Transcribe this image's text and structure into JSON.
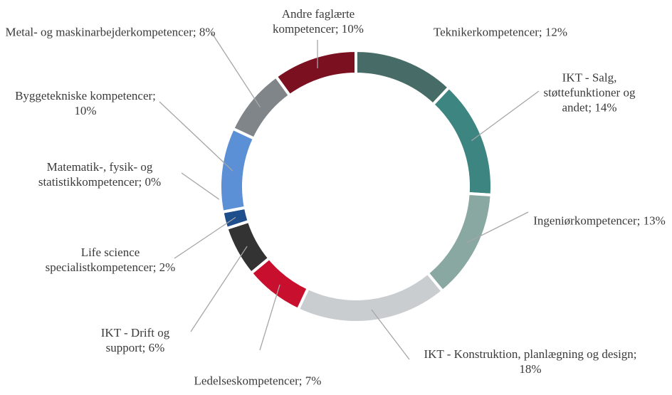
{
  "chart_data": {
    "type": "donut",
    "categories": [
      "Teknikerkompetencer;",
      "IKT - Salg, støttefunktioner og andet;",
      "Ingeniørkompetencer;",
      "IKT - Konstruktion, planlægning og design;",
      "Ledelseskompetencer;",
      "IKT - Drift og support;",
      "Life science specialistkompetencer;",
      "Matematik-, fysik- og statistikkompetencer;",
      "Byggetekniske kompetencer;",
      "Metal- og maskinarbejderkompetencer;",
      "Andre faglærte kompetencer;"
    ],
    "values": [
      12,
      14,
      13,
      18,
      7,
      6,
      2,
      0,
      10,
      8,
      10
    ],
    "value_labels": [
      "12%",
      "14%",
      "13%",
      "18%",
      "7%",
      "6%",
      "2%",
      "0%",
      "10%",
      "8%",
      "10%"
    ],
    "colors": [
      "#476b66",
      "#3d8580",
      "#8aa8a2",
      "#c9cdd0",
      "#c8102e",
      "#333333",
      "#1f4e8c",
      "#2c5fa8",
      "#5b8fd6",
      "#7f8589",
      "#7b1020"
    ]
  }
}
